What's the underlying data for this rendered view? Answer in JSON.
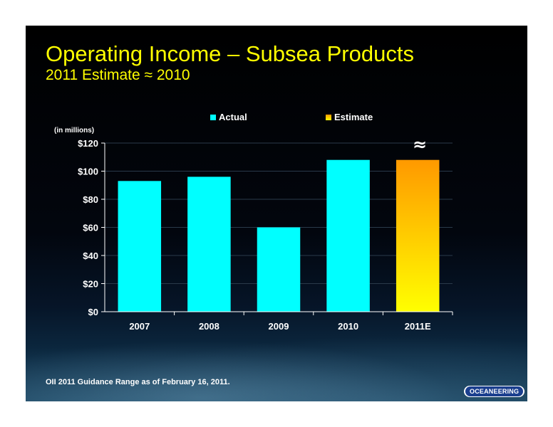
{
  "slide": {
    "title": "Operating Income – Subsea Products",
    "subtitle": "2011 Estimate ≈ 2010",
    "footnote": "OII 2011 Guidance Range as of February 16, 2011.",
    "logo_text": "OCEANEERING",
    "logo_mark": "®"
  },
  "chart_data": {
    "type": "bar",
    "categories": [
      "2007",
      "2008",
      "2009",
      "2010",
      "2011E"
    ],
    "series": [
      {
        "name": "Actual",
        "values": [
          93,
          96,
          60,
          108,
          null
        ],
        "color": "#00ffff"
      },
      {
        "name": "Estimate",
        "values": [
          null,
          null,
          null,
          null,
          108
        ],
        "color": "#ffa500"
      }
    ],
    "y_unit_note": "(in millions)",
    "y_ticks": [
      "$0",
      "$20",
      "$40",
      "$60",
      "$80",
      "$100",
      "$120"
    ],
    "ylim": [
      0,
      120
    ],
    "legend_placement": "top",
    "annotation": "≈",
    "grid": true
  },
  "colors": {
    "title": "#ffff00",
    "actual": "#00ffff",
    "estimate_top": "#ff9900",
    "estimate_bottom": "#ffff00"
  }
}
